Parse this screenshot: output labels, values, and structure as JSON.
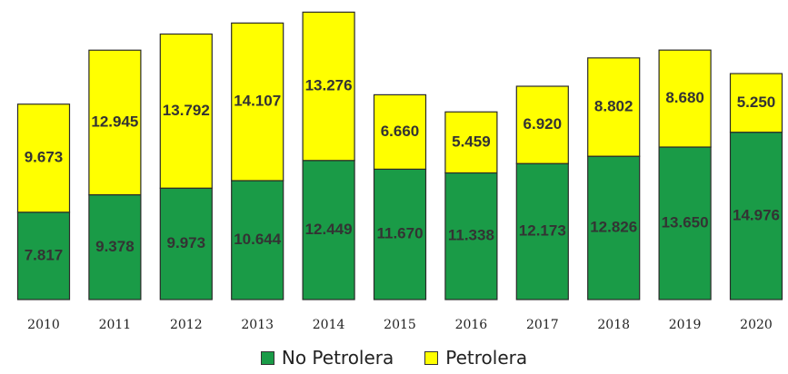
{
  "chart_data": {
    "type": "bar",
    "stacked": true,
    "categories": [
      "2010",
      "2011",
      "2012",
      "2013",
      "2014",
      "2015",
      "2016",
      "2017",
      "2018",
      "2019",
      "2020"
    ],
    "series": [
      {
        "name": "No Petrolera",
        "color": "#1a9b47",
        "values": [
          7817,
          9378,
          9973,
          10644,
          12449,
          11670,
          11338,
          12173,
          12826,
          13650,
          14976
        ],
        "labels": [
          "7.817",
          "9.378",
          "9.973",
          "10.644",
          "12.449",
          "11.670",
          "11.338",
          "12.173",
          "12.826",
          "13.650",
          "14.976"
        ]
      },
      {
        "name": "Petrolera",
        "color": "#ffff00",
        "values": [
          9673,
          12945,
          13792,
          14107,
          13276,
          6660,
          5459,
          6920,
          8802,
          8680,
          5250
        ],
        "labels": [
          "9.673",
          "12.945",
          "13.792",
          "14.107",
          "13.276",
          "6.660",
          "5.459",
          "6.920",
          "8.802",
          "8.680",
          "5.250"
        ]
      }
    ],
    "ylim": [
      0,
      26000
    ],
    "grid": false,
    "legend_position": "bottom"
  },
  "legend": {
    "items": [
      {
        "label": "No Petrolera",
        "color": "#1a9b47"
      },
      {
        "label": "Petrolera",
        "color": "#ffff00"
      }
    ]
  }
}
